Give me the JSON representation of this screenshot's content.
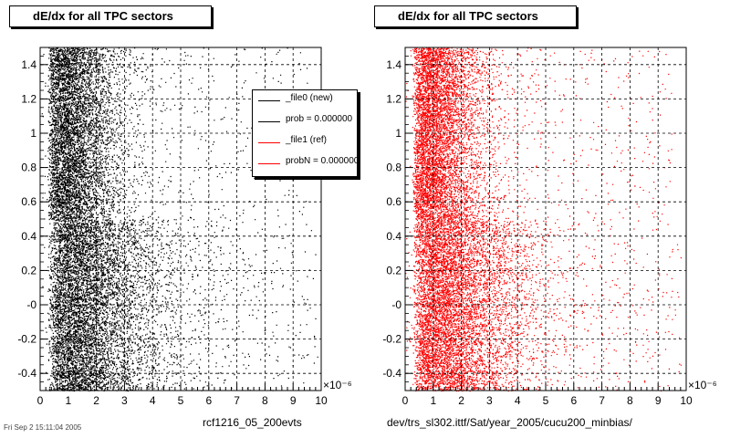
{
  "chart_data": [
    {
      "type": "scatter",
      "title": "dE/dx for all TPC sectors",
      "marker_color": "#000000",
      "x_exponent_label": "×10⁻⁶",
      "xlim": [
        0,
        10
      ],
      "ylim": [
        -0.5,
        1.5
      ],
      "x_ticks": [
        "0",
        "1",
        "2",
        "3",
        "4",
        "5",
        "6",
        "7",
        "8",
        "9",
        "10"
      ],
      "y_ticks": [
        "-0.4",
        "-0.2",
        "-0",
        "0.2",
        "0.4",
        "0.6",
        "0.8",
        "1",
        "1.2",
        "1.4"
      ],
      "grid": true,
      "legend": {
        "position": "top-right",
        "entries": [
          {
            "label": "_file0 (new)",
            "color": "#000000"
          },
          {
            "label": "prob = 0.000000",
            "color": "#000000"
          },
          {
            "label": "_file1 (ref)",
            "color": "#ff0000"
          },
          {
            "label": "probN = 0.000000",
            "color": "#ff0000"
          }
        ]
      },
      "bottom_label": "rcf1216_05_200evts",
      "distribution": {
        "low_band_y": [
          -0.5,
          0.5
        ],
        "low_band_x_extent": 8.0,
        "high_band_y": [
          0.5,
          1.5
        ],
        "high_band_x_extent": 6.0
      }
    },
    {
      "type": "scatter",
      "title": "dE/dx for all TPC sectors",
      "marker_color": "#ff0000",
      "x_exponent_label": "×10⁻⁶",
      "xlim": [
        0,
        10
      ],
      "ylim": [
        -0.5,
        1.5
      ],
      "x_ticks": [
        "0",
        "1",
        "2",
        "3",
        "4",
        "5",
        "6",
        "7",
        "8",
        "9",
        "10"
      ],
      "y_ticks": [
        "-0.4",
        "-0.2",
        "-0",
        "0.2",
        "0.4",
        "0.6",
        "0.8",
        "1",
        "1.2",
        "1.4"
      ],
      "grid": true,
      "bottom_label": "dev/trs_sl302.ittf/Sat/year_2005/cucu200_minbias/",
      "distribution": {
        "low_band_y": [
          -0.5,
          0.5
        ],
        "low_band_x_extent": 8.0,
        "high_band_y": [
          0.5,
          1.5
        ],
        "high_band_x_extent": 6.0
      }
    }
  ],
  "footer": "Fri Sep 2 15:11:04 2005"
}
